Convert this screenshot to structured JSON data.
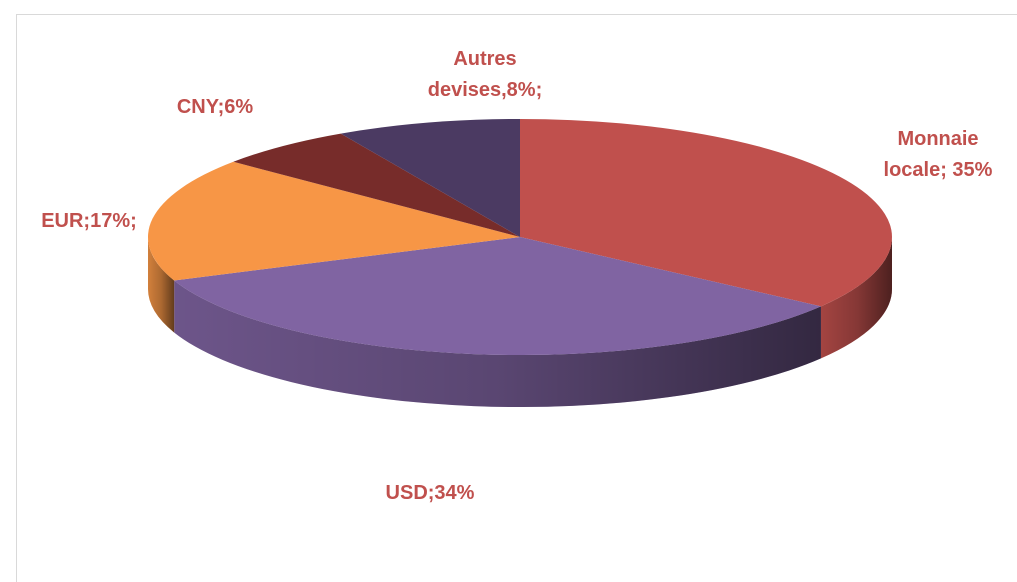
{
  "chart_data": {
    "type": "pie",
    "values": [
      35,
      34,
      17,
      6,
      8
    ],
    "value_labels": [
      "Monnaie locale; 35%",
      "USD;34%",
      "EUR;17%;",
      "CNY;6%",
      "Autres devises,8%;"
    ],
    "colors": [
      "#c0504d",
      "#8064a2",
      "#f79646",
      "#772c2a",
      "#4b3a62"
    ],
    "label_color": "#c0504d"
  }
}
